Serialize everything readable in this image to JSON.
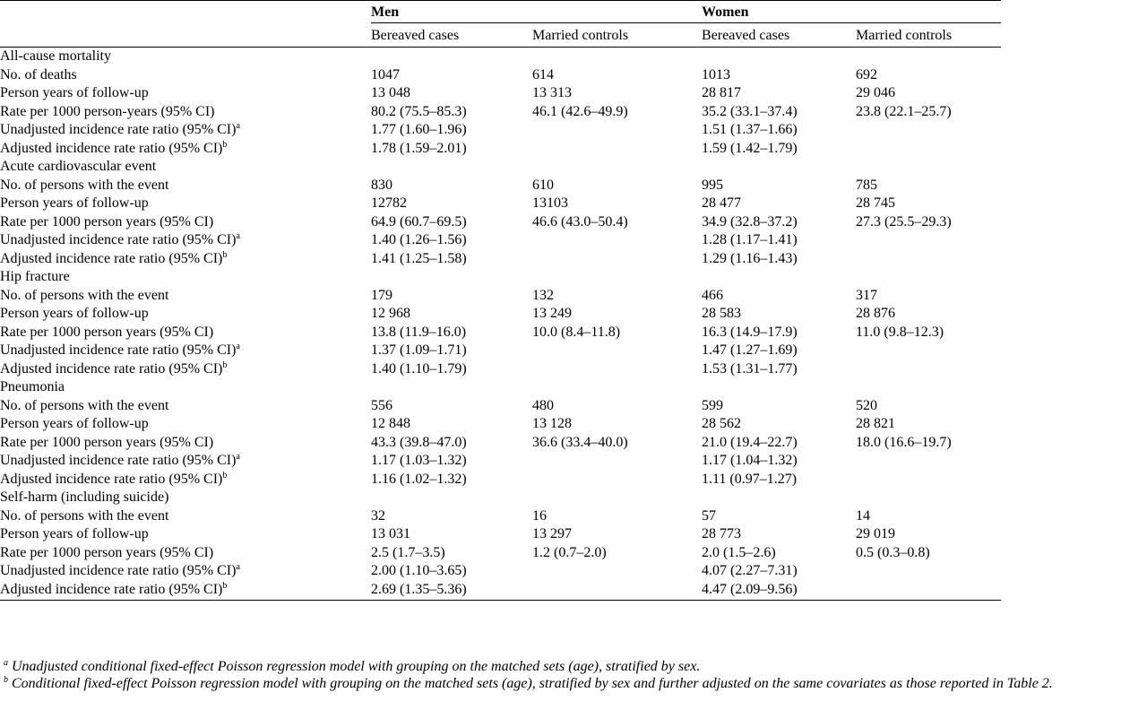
{
  "header": {
    "men": "Men",
    "women": "Women",
    "bereaved": "Bereaved cases",
    "married": "Married controls"
  },
  "sections": [
    {
      "title": "All-cause mortality",
      "rows": [
        {
          "label": "No. of deaths",
          "sup": "",
          "v": [
            "1047",
            "614",
            "1013",
            "692"
          ]
        },
        {
          "label": "Person years of follow-up",
          "sup": "",
          "v": [
            "13 048",
            "13 313",
            "28 817",
            "29 046"
          ]
        },
        {
          "label": "Rate per 1000 person-years (95% CI)",
          "sup": "",
          "v": [
            "80.2 (75.5–85.3)",
            "46.1 (42.6–49.9)",
            "35.2 (33.1–37.4)",
            "23.8 (22.1–25.7)"
          ]
        },
        {
          "label": "Unadjusted incidence rate ratio (95% CI)",
          "sup": "a",
          "v": [
            "1.77 (1.60–1.96)",
            "",
            "1.51 (1.37–1.66)",
            ""
          ]
        },
        {
          "label": "Adjusted incidence rate ratio (95% CI)",
          "sup": "b",
          "v": [
            "1.78 (1.59–2.01)",
            "",
            "1.59 (1.42–1.79)",
            ""
          ]
        }
      ]
    },
    {
      "title": "Acute cardiovascular event",
      "rows": [
        {
          "label": "No. of persons with the event",
          "sup": "",
          "v": [
            "830",
            "610",
            "995",
            "785"
          ]
        },
        {
          "label": "Person years of follow-up",
          "sup": "",
          "v": [
            "12782",
            "13103",
            "28 477",
            "28 745"
          ]
        },
        {
          "label": "Rate per 1000 person years (95% CI)",
          "sup": "",
          "v": [
            "64.9 (60.7–69.5)",
            "46.6 (43.0–50.4)",
            "34.9 (32.8–37.2)",
            "27.3 (25.5–29.3)"
          ]
        },
        {
          "label": "Unadjusted incidence rate ratio (95% CI)",
          "sup": "a",
          "v": [
            "1.40 (1.26–1.56)",
            "",
            "1.28 (1.17–1.41)",
            ""
          ]
        },
        {
          "label": "Adjusted incidence rate ratio (95% CI)",
          "sup": "b",
          "v": [
            "1.41 (1.25–1.58)",
            "",
            "1.29 (1.16–1.43)",
            ""
          ]
        }
      ]
    },
    {
      "title": "Hip fracture",
      "rows": [
        {
          "label": "No. of persons with the event",
          "sup": "",
          "v": [
            "179",
            "132",
            "466",
            "317"
          ]
        },
        {
          "label": "Person years of follow-up",
          "sup": "",
          "v": [
            "12 968",
            "13 249",
            "28 583",
            "28 876"
          ]
        },
        {
          "label": "Rate per 1000 person years (95% CI)",
          "sup": "",
          "v": [
            "13.8 (11.9–16.0)",
            "10.0 (8.4–11.8)",
            "16.3 (14.9–17.9)",
            "11.0 (9.8–12.3)"
          ]
        },
        {
          "label": "Unadjusted incidence rate ratio (95% CI)",
          "sup": "a",
          "v": [
            "1.37 (1.09–1.71)",
            "",
            "1.47 (1.27–1.69)",
            ""
          ]
        },
        {
          "label": "Adjusted incidence rate ratio (95% CI)",
          "sup": "b",
          "v": [
            "1.40 (1.10–1.79)",
            "",
            "1.53 (1.31–1.77)",
            ""
          ]
        }
      ]
    },
    {
      "title": "Pneumonia",
      "rows": [
        {
          "label": "No. of persons with the event",
          "sup": "",
          "v": [
            "556",
            "480",
            "599",
            "520"
          ]
        },
        {
          "label": "Person years of follow-up",
          "sup": "",
          "v": [
            "12 848",
            "13 128",
            "28 562",
            "28 821"
          ]
        },
        {
          "label": "Rate per 1000 person years (95% CI)",
          "sup": "",
          "v": [
            "43.3 (39.8–47.0)",
            "36.6 (33.4–40.0)",
            "21.0 (19.4–22.7)",
            "18.0 (16.6–19.7)"
          ]
        },
        {
          "label": "Unadjusted incidence rate ratio (95% CI)",
          "sup": "a",
          "v": [
            "1.17 (1.03–1.32)",
            "",
            "1.17 (1.04–1.32)",
            ""
          ]
        },
        {
          "label": "Adjusted incidence rate ratio (95% CI)",
          "sup": "b",
          "v": [
            "1.16 (1.02–1.32)",
            "",
            "1.11 (0.97–1.27)",
            ""
          ]
        }
      ]
    },
    {
      "title": "Self-harm (including suicide)",
      "rows": [
        {
          "label": "No. of persons with the event",
          "sup": "",
          "v": [
            "32",
            "16",
            "57",
            "14"
          ]
        },
        {
          "label": "Person years of follow-up",
          "sup": "",
          "v": [
            "13 031",
            "13 297",
            "28 773",
            "29 019"
          ]
        },
        {
          "label": "Rate per 1000 person years (95% CI)",
          "sup": "",
          "v": [
            "2.5 (1.7–3.5)",
            "1.2 (0.7–2.0)",
            "2.0 (1.5–2.6)",
            "0.5 (0.3–0.8)"
          ]
        },
        {
          "label": "Unadjusted incidence rate ratio (95% CI)",
          "sup": "a",
          "v": [
            "2.00 (1.10–3.65)",
            "",
            "4.07 (2.27–7.31)",
            ""
          ]
        },
        {
          "label": "Adjusted incidence rate ratio (95% CI)",
          "sup": "b",
          "v": [
            "2.69 (1.35–5.36)",
            "",
            "4.47 (2.09–9.56)",
            ""
          ]
        }
      ]
    }
  ],
  "footnotes": [
    {
      "mark": "a",
      "text": "Unadjusted conditional fixed-effect Poisson regression model with grouping on the matched sets (age), stratified by sex."
    },
    {
      "mark": "b",
      "text": "Conditional fixed-effect Poisson regression model with grouping on the matched sets (age), stratified by sex and further adjusted on the same covariates as those reported in Table 2."
    }
  ]
}
